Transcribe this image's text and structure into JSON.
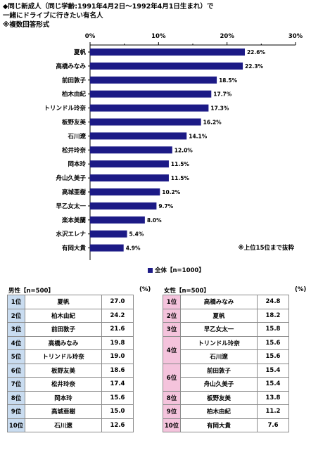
{
  "title": {
    "line1": "◆同じ新成人（同じ学齢:1991年4月2日～1992年4月1日生まれ）で",
    "line2": "一緒にドライブに行きたい有名人",
    "line3": "※複数回答形式"
  },
  "chart_data": {
    "type": "bar",
    "orientation": "horizontal",
    "categories": [
      "夏帆",
      "高橋みなみ",
      "前田敦子",
      "柏木由紀",
      "トリンドル玲奈",
      "板野友美",
      "石川遼",
      "松井玲奈",
      "岡本玲",
      "舟山久美子",
      "高城亜樹",
      "早乙女太一",
      "楽本美蘭",
      "水沢エレナ",
      "有岡大貴"
    ],
    "values": [
      22.6,
      22.3,
      18.5,
      17.7,
      17.3,
      16.2,
      14.1,
      12.0,
      11.5,
      11.5,
      10.2,
      9.7,
      8.0,
      5.4,
      4.9
    ],
    "value_labels": [
      "22.6%",
      "22.3%",
      "18.5%",
      "17.7%",
      "17.3%",
      "16.2%",
      "14.1%",
      "12.0%",
      "11.5%",
      "11.5%",
      "10.2%",
      "9.7%",
      "8.0%",
      "5.4%",
      "4.9%"
    ],
    "xlim": [
      0,
      30
    ],
    "ticks": [
      "0%",
      "10%",
      "20%",
      "30%"
    ],
    "bar_color": "#1c1a86",
    "legend_label": "全体【n=1000】",
    "legend_position": "bottom-right",
    "note": "※上位15位まで抜粋",
    "grid": false
  },
  "male": {
    "title": "男性【n=500】",
    "pct_label": "(%)",
    "rows": [
      {
        "rank": "1位",
        "name": "夏帆",
        "value": "27.0"
      },
      {
        "rank": "2位",
        "name": "柏木由紀",
        "value": "24.2"
      },
      {
        "rank": "3位",
        "name": "前田敦子",
        "value": "21.6"
      },
      {
        "rank": "4位",
        "name": "高橋みなみ",
        "value": "19.8"
      },
      {
        "rank": "5位",
        "name": "トリンドル玲奈",
        "value": "19.0"
      },
      {
        "rank": "6位",
        "name": "板野友美",
        "value": "18.6"
      },
      {
        "rank": "7位",
        "name": "松井玲奈",
        "value": "17.4"
      },
      {
        "rank": "8位",
        "name": "岡本玲",
        "value": "15.6"
      },
      {
        "rank": "9位",
        "name": "高城亜樹",
        "value": "15.0"
      },
      {
        "rank": "10位",
        "name": "石川遼",
        "value": "12.6"
      }
    ]
  },
  "female": {
    "title": "女性【n=500】",
    "pct_label": "(%)",
    "rows": [
      {
        "rank": "1位",
        "span": 1,
        "name": "高橋みなみ",
        "value": "24.8"
      },
      {
        "rank": "2位",
        "span": 1,
        "name": "夏帆",
        "value": "18.2"
      },
      {
        "rank": "3位",
        "span": 1,
        "name": "早乙女太一",
        "value": "15.8"
      },
      {
        "rank": "4位",
        "span": 2,
        "name": "トリンドル玲奈",
        "value": "15.6"
      },
      {
        "rank": null,
        "name": "石川遼",
        "value": "15.6"
      },
      {
        "rank": "6位",
        "span": 2,
        "name": "前田敦子",
        "value": "15.4"
      },
      {
        "rank": null,
        "name": "舟山久美子",
        "value": "15.4"
      },
      {
        "rank": "8位",
        "span": 1,
        "name": "板野友美",
        "value": "13.8"
      },
      {
        "rank": "9位",
        "span": 1,
        "name": "柏木由紀",
        "value": "11.2"
      },
      {
        "rank": "10位",
        "span": 1,
        "name": "有岡大貴",
        "value": "7.6"
      }
    ]
  }
}
